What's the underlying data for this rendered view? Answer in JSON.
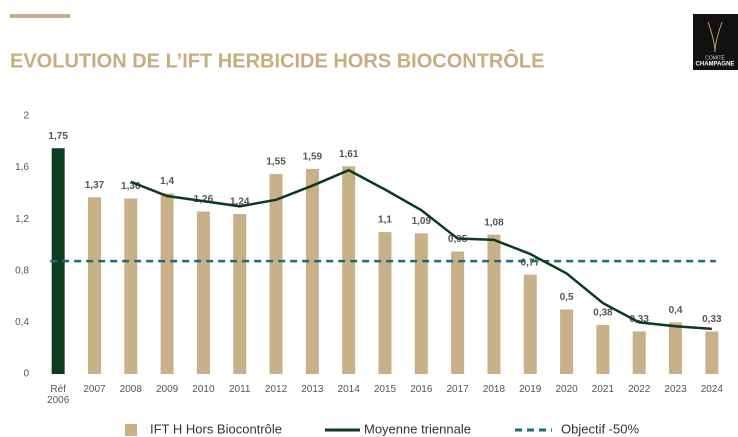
{
  "chart_data": {
    "type": "bar",
    "title": "EVOLUTION DE L’IFT HERBICIDE HORS BIOCONTRÔLE",
    "categories": [
      "Réf 2006",
      "2007",
      "2008",
      "2009",
      "2010",
      "2011",
      "2012",
      "2013",
      "2014",
      "2015",
      "2016",
      "2017",
      "2018",
      "2019",
      "2020",
      "2021",
      "2022",
      "2023",
      "2024"
    ],
    "series": [
      {
        "name": "IFT H Hors Biocontrôle",
        "color": "#c8b088",
        "first_color": "#0d3b20",
        "values": [
          1.75,
          1.37,
          1.36,
          1.4,
          1.26,
          1.24,
          1.55,
          1.59,
          1.61,
          1.1,
          1.09,
          0.95,
          1.08,
          0.77,
          0.5,
          0.38,
          0.33,
          0.4,
          0.33
        ],
        "value_labels": [
          "1,75",
          "1,37",
          "1,36",
          "1,4",
          "1,26",
          "1,24",
          "1,55",
          "1,59",
          "1,61",
          "1,1",
          "1,09",
          "0,95",
          "1,08",
          "0,77",
          "0,5",
          "0,38",
          "0,33",
          "0,4",
          "0,33"
        ]
      },
      {
        "name": "Moyenne triennale",
        "type": "line",
        "color": "#0d3b20",
        "values": [
          null,
          null,
          1.49,
          1.38,
          1.34,
          1.3,
          1.35,
          1.46,
          1.58,
          1.43,
          1.27,
          1.05,
          1.04,
          0.93,
          0.78,
          0.55,
          0.4,
          0.37,
          0.35
        ]
      }
    ],
    "target": {
      "name": "Objectif -50%",
      "value": 0.875,
      "color": "#1f6b7a"
    },
    "ylim": [
      0,
      2
    ],
    "yticks": [
      0,
      {
        "value": 0.4,
        "label": "0,4"
      },
      {
        "value": 0.8,
        "label": "0,8"
      },
      {
        "value": 1.2,
        "label": "1,2"
      },
      {
        "value": 1.6,
        "label": "1,6"
      },
      2
    ],
    "grid": false
  },
  "brand": {
    "line1": "COMITÉ",
    "line2": "CHAMPAGNE"
  }
}
